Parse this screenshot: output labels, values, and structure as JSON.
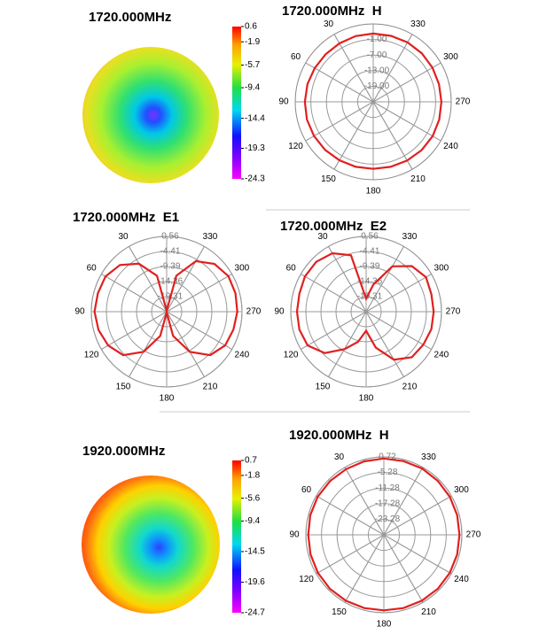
{
  "chart_data": [
    {
      "type": "heatmap",
      "title": "1720.000MHz",
      "clim": [
        -24.3,
        0.6
      ],
      "colorbar_ticks": [
        0.6,
        -1.9,
        -5.7,
        -9.4,
        -14.4,
        -19.3,
        -24.3
      ]
    },
    {
      "type": "polar",
      "title": "1720.000MHz  H",
      "color": "#e02020",
      "rlim": [
        -25,
        5
      ],
      "rticks": [
        {
          "value": -1,
          "label": "-1.00"
        },
        {
          "value": -7,
          "label": "-7.00"
        },
        {
          "value": -13,
          "label": "-13.00"
        },
        {
          "value": -19,
          "label": "-19.00"
        }
      ],
      "angle_ticks": [
        30,
        60,
        90,
        120,
        150,
        180,
        210,
        240,
        270,
        300,
        330
      ],
      "theta": [
        0,
        15,
        30,
        45,
        60,
        75,
        90,
        105,
        120,
        135,
        150,
        165,
        180,
        195,
        210,
        225,
        240,
        255,
        270,
        285,
        300,
        315,
        330,
        345
      ],
      "values": [
        1.3,
        1.2,
        1.0,
        0.9,
        1.0,
        1.2,
        1.3,
        1.4,
        1.3,
        1.2,
        1.0,
        0.9,
        0.8,
        0.9,
        1.1,
        1.3,
        1.4,
        1.3,
        1.2,
        1.2,
        1.3,
        1.4,
        1.4,
        1.3
      ]
    },
    {
      "type": "polar",
      "title": "1720.000MHz  E1",
      "color": "#e02020",
      "rlim": [
        -24.29,
        0.56
      ],
      "rticks": [
        {
          "value": 0.56,
          "label": "0.56"
        },
        {
          "value": -4.41,
          "label": "-4.41"
        },
        {
          "value": -9.39,
          "label": "-9.39"
        },
        {
          "value": -14.36,
          "label": "-14.36"
        },
        {
          "value": -19.31,
          "label": "-19.31"
        }
      ],
      "angle_ticks": [
        30,
        60,
        90,
        120,
        150,
        180,
        210,
        240,
        270,
        300,
        330
      ],
      "theta": [
        0,
        15,
        30,
        45,
        60,
        75,
        90,
        105,
        120,
        135,
        150,
        165,
        180,
        195,
        210,
        225,
        240,
        255,
        270,
        285,
        300,
        315,
        330,
        345
      ],
      "values": [
        -24,
        -12,
        -6,
        -2.5,
        -1,
        -0.8,
        -0.5,
        -1,
        -2,
        -4,
        -9,
        -16,
        -24,
        -16,
        -9,
        -4,
        -2,
        -1.5,
        -1,
        -0.8,
        -0.8,
        -2,
        -5,
        -12
      ]
    },
    {
      "type": "polar",
      "title": "1720.000MHz  E2",
      "color": "#e02020",
      "rlim": [
        -24.29,
        0.56
      ],
      "rticks": [
        {
          "value": 0.56,
          "label": "0.56"
        },
        {
          "value": -4.41,
          "label": "-4.41"
        },
        {
          "value": -9.39,
          "label": "-9.39"
        },
        {
          "value": -14.36,
          "label": "-14.36"
        },
        {
          "value": -19.31,
          "label": "-19.31"
        }
      ],
      "angle_ticks": [
        30,
        60,
        90,
        120,
        150,
        180,
        210,
        240,
        270,
        300,
        330
      ],
      "theta": [
        0,
        15,
        30,
        45,
        60,
        75,
        90,
        105,
        120,
        135,
        150,
        165,
        180,
        195,
        210,
        225,
        240,
        255,
        270,
        285,
        300,
        315,
        330,
        345
      ],
      "values": [
        -20,
        -5,
        -2,
        -1,
        -1,
        -1.5,
        -1.5,
        -1.5,
        -2,
        -5,
        -10,
        -14,
        -18,
        -12,
        -6,
        -3,
        -2.5,
        -2,
        -2,
        -2,
        -1.5,
        -3,
        -7,
        -15
      ]
    },
    {
      "type": "heatmap",
      "title": "1920.000MHz",
      "clim": [
        -24.7,
        0.7
      ],
      "colorbar_ticks": [
        0.7,
        -1.8,
        -5.6,
        -9.4,
        -14.5,
        -19.6,
        -24.7
      ]
    },
    {
      "type": "polar",
      "title": "1920.000MHz  H",
      "color": "#e02020",
      "rlim": [
        -29.28,
        0.72
      ],
      "rticks": [
        {
          "value": 0.72,
          "label": "0.72"
        },
        {
          "value": -5.28,
          "label": "-5.28"
        },
        {
          "value": -11.28,
          "label": "-11.28"
        },
        {
          "value": -17.28,
          "label": "-17.28"
        },
        {
          "value": -23.28,
          "label": "-23.28"
        }
      ],
      "angle_ticks": [
        30,
        60,
        90,
        120,
        150,
        180,
        210,
        240,
        270,
        300,
        330
      ],
      "theta": [
        0,
        15,
        30,
        45,
        60,
        75,
        90,
        105,
        120,
        135,
        150,
        165,
        180,
        195,
        210,
        225,
        240,
        255,
        270,
        285,
        300,
        315,
        330,
        345
      ],
      "values": [
        0.1,
        0.0,
        -0.1,
        0.0,
        0.1,
        0.0,
        -0.2,
        -0.1,
        0.0,
        0.1,
        0.0,
        -0.1,
        -0.2,
        -0.1,
        0.0,
        0.1,
        0.0,
        -0.1,
        -0.2,
        -0.1,
        0.0,
        0.1,
        0.2,
        0.1
      ]
    }
  ]
}
